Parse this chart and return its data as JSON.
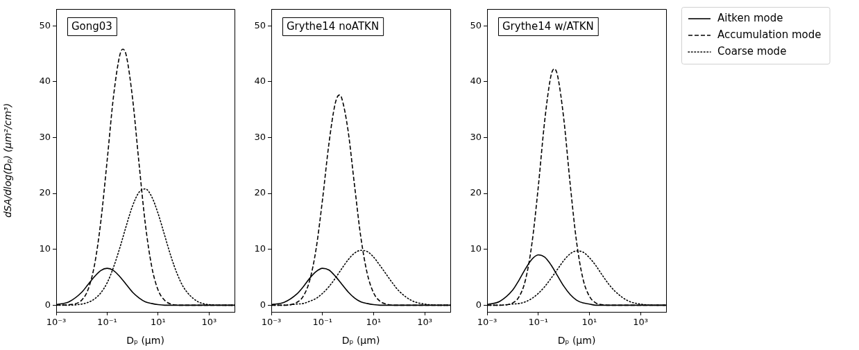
{
  "chart_data": [
    {
      "type": "line",
      "title": "Gong03",
      "xlabel": "Dₚ (µm)",
      "ylabel": "dSA/dlog(Dₚ) (µm²/cm³)",
      "log": "x",
      "grid": false,
      "x": [
        0.001,
        0.00316,
        0.01,
        0.0178,
        0.0316,
        0.0562,
        0.1,
        0.178,
        0.316,
        0.562,
        1,
        1.78,
        3.16,
        5.62,
        10,
        17.8,
        31.6,
        56.2,
        100,
        316,
        1000,
        3162,
        10000
      ],
      "xlim": [
        0.001,
        10000
      ],
      "ylim": [
        -1.2,
        53
      ],
      "xticks": [
        {
          "value": 0.001,
          "label": "10⁻³"
        },
        {
          "value": 0.1,
          "label": "10⁻¹"
        },
        {
          "value": 10,
          "label": "10¹"
        },
        {
          "value": 1000,
          "label": "10³"
        }
      ],
      "yticks": [
        0,
        10,
        20,
        30,
        40,
        50
      ],
      "series": [
        {
          "color": "#000000",
          "line_style": "solid",
          "values": [
            0.1,
            0.6,
            2.3,
            3.7,
            5.1,
            6.2,
            6.6,
            6.2,
            5.1,
            3.7,
            2.3,
            1.3,
            0.6,
            0.3,
            0.1,
            0,
            0,
            0,
            0,
            0,
            0,
            0,
            0
          ]
        },
        {
          "color": "#000000",
          "line_style": "dashed",
          "x": [
            0.001,
            0.00316,
            0.01,
            0.0178,
            0.0316,
            0.0562,
            0.1,
            0.178,
            0.316,
            0.417,
            0.562,
            1,
            1.78,
            3.16,
            5.62,
            10,
            17.8,
            31.6,
            56.2,
            100,
            316,
            1000,
            3162,
            10000
          ],
          "values": [
            0,
            0.1,
            0.9,
            2.8,
            7.1,
            14.9,
            25.9,
            37.4,
            44.8,
            45.8,
            44.7,
            36.9,
            25.4,
            14.5,
            6.9,
            2.7,
            0.9,
            0.2,
            0,
            0,
            0,
            0,
            0,
            0
          ]
        },
        {
          "color": "#000000",
          "line_style": "dotted",
          "values": [
            0,
            0,
            0.2,
            0.5,
            1.1,
            2.2,
            4,
            6.8,
            10.3,
            14.2,
            17.8,
            20.2,
            20.8,
            19.4,
            16.4,
            12.6,
            8.8,
            5.6,
            3.2,
            0.8,
            0.1,
            0,
            0
          ]
        }
      ]
    },
    {
      "type": "line",
      "title": "Grythe14 noATKN",
      "xlabel": "Dₚ (µm)",
      "log": "x",
      "grid": false,
      "x": [
        0.001,
        0.00316,
        0.01,
        0.0178,
        0.0316,
        0.0562,
        0.1,
        0.178,
        0.316,
        0.562,
        1,
        1.78,
        3.16,
        5.62,
        10,
        17.8,
        31.6,
        56.2,
        100,
        316,
        1000,
        3162,
        10000
      ],
      "xlim": [
        0.001,
        10000
      ],
      "ylim": [
        -1.2,
        53
      ],
      "xticks": [
        {
          "value": 0.001,
          "label": "10⁻³"
        },
        {
          "value": 0.1,
          "label": "10⁻¹"
        },
        {
          "value": 10,
          "label": "10¹"
        },
        {
          "value": 1000,
          "label": "10³"
        }
      ],
      "yticks": [
        0,
        10,
        20,
        30,
        40,
        50
      ],
      "series": [
        {
          "color": "#000000",
          "line_style": "solid",
          "values": [
            0.1,
            0.5,
            2,
            3.3,
            4.8,
            6,
            6.6,
            6.3,
            5.2,
            3.8,
            2.4,
            1.3,
            0.6,
            0.3,
            0.1,
            0,
            0,
            0,
            0,
            0,
            0,
            0,
            0
          ]
        },
        {
          "color": "#000000",
          "line_style": "dashed",
          "x": [
            0.001,
            0.00316,
            0.01,
            0.0178,
            0.0316,
            0.0562,
            0.1,
            0.178,
            0.316,
            0.457,
            0.562,
            1,
            1.78,
            3.16,
            5.62,
            10,
            17.8,
            31.6,
            56.2,
            100,
            316,
            1000,
            3162,
            10000
          ],
          "values": [
            0,
            0,
            0.5,
            1.6,
            4.4,
            10,
            18.8,
            28.8,
            36.1,
            37.6,
            37.1,
            31.3,
            21.6,
            12.2,
            5.7,
            2.2,
            0.7,
            0.2,
            0,
            0,
            0,
            0,
            0,
            0
          ]
        },
        {
          "color": "#000000",
          "line_style": "dotted",
          "values": [
            0,
            0,
            0.2,
            0.3,
            0.7,
            1.2,
            2.1,
            3.3,
            4.8,
            6.5,
            8.1,
            9.3,
            9.8,
            9.6,
            8.6,
            7.1,
            5.5,
            3.9,
            2.5,
            0.8,
            0.2,
            0,
            0
          ]
        }
      ]
    },
    {
      "type": "line",
      "title": "Grythe14 w/ATKN",
      "xlabel": "Dₚ (µm)",
      "log": "x",
      "grid": false,
      "legend": "top right",
      "x": [
        0.001,
        0.00316,
        0.01,
        0.0178,
        0.0316,
        0.0562,
        0.1,
        0.178,
        0.316,
        0.562,
        1,
        1.78,
        3.16,
        5.62,
        10,
        17.8,
        31.6,
        56.2,
        100,
        316,
        1000,
        3162,
        10000
      ],
      "xlim": [
        0.001,
        10000
      ],
      "ylim": [
        -1.2,
        53
      ],
      "xticks": [
        {
          "value": 0.001,
          "label": "10⁻³"
        },
        {
          "value": 0.1,
          "label": "10⁻¹"
        },
        {
          "value": 10,
          "label": "10¹"
        },
        {
          "value": 1000,
          "label": "10³"
        }
      ],
      "yticks": [
        0,
        10,
        20,
        30,
        40,
        50
      ],
      "series": [
        {
          "name": "Aitken mode",
          "color": "#000000",
          "line_style": "solid",
          "values": [
            0.1,
            0.7,
            2.7,
            4.5,
            6.5,
            8.2,
            9,
            8.6,
            7.2,
            5.3,
            3.4,
            1.9,
            0.9,
            0.4,
            0.2,
            0,
            0,
            0,
            0,
            0,
            0,
            0,
            0
          ]
        },
        {
          "name": "Accumulation mode",
          "color": "#000000",
          "line_style": "dashed",
          "x": [
            0.001,
            0.00316,
            0.01,
            0.0178,
            0.0316,
            0.0562,
            0.1,
            0.178,
            0.316,
            0.427,
            0.562,
            1,
            1.78,
            3.16,
            5.62,
            10,
            17.8,
            31.6,
            56.2,
            100,
            316,
            1000,
            3162,
            10000
          ],
          "values": [
            0,
            0,
            0.4,
            1.5,
            4.5,
            10.9,
            21.1,
            32.9,
            41.1,
            42.3,
            41.2,
            33.3,
            21.6,
            11.3,
            4.7,
            1.6,
            0.4,
            0.1,
            0,
            0,
            0,
            0,
            0,
            0
          ]
        },
        {
          "name": "Coarse mode",
          "color": "#000000",
          "line_style": "dotted",
          "values": [
            0,
            0,
            0.2,
            0.3,
            0.6,
            1.2,
            2.1,
            3.3,
            4.8,
            6.4,
            8,
            9.2,
            9.7,
            9.5,
            8.5,
            7.1,
            5.4,
            3.8,
            2.5,
            0.8,
            0.2,
            0,
            0
          ]
        }
      ]
    }
  ]
}
